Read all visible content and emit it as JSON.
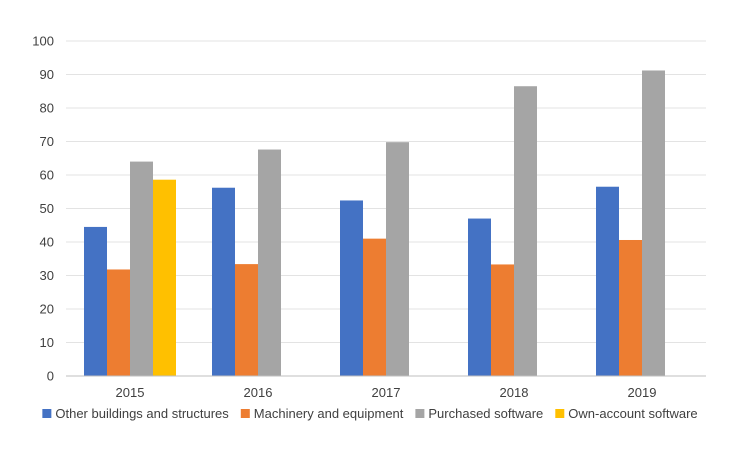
{
  "chart_data": {
    "type": "bar",
    "title": "",
    "xlabel": "",
    "ylabel": "",
    "categories": [
      "2015",
      "2016",
      "2017",
      "2018",
      "2019"
    ],
    "ylim": [
      0,
      100
    ],
    "yticks": [
      0,
      10,
      20,
      30,
      40,
      50,
      60,
      70,
      80,
      90,
      100
    ],
    "grid": true,
    "legend": "bottom",
    "series": [
      {
        "name": "Other buildings and structures",
        "color": "#4472c4",
        "values": [
          44.5,
          56.2,
          52.4,
          47.0,
          56.5
        ]
      },
      {
        "name": "Machinery and equipment",
        "color": "#ed7d31",
        "values": [
          31.8,
          33.4,
          41.0,
          33.3,
          40.6
        ]
      },
      {
        "name": "Purchased software",
        "color": "#a5a5a5",
        "values": [
          64.0,
          67.6,
          69.8,
          86.5,
          91.2
        ]
      },
      {
        "name": "Own-account software",
        "color": "#ffc000",
        "values": [
          58.6,
          null,
          null,
          null,
          null
        ]
      }
    ]
  }
}
